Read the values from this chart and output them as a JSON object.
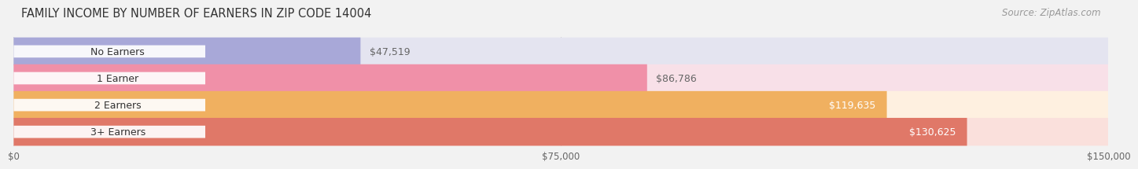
{
  "title": "FAMILY INCOME BY NUMBER OF EARNERS IN ZIP CODE 14004",
  "source": "Source: ZipAtlas.com",
  "categories": [
    "No Earners",
    "1 Earner",
    "2 Earners",
    "3+ Earners"
  ],
  "values": [
    47519,
    86786,
    119635,
    130625
  ],
  "bar_colors": [
    "#a8a8d8",
    "#f090a8",
    "#f0b060",
    "#e07868"
  ],
  "bg_colors": [
    "#e4e4f0",
    "#f8e0e8",
    "#fef0e0",
    "#fae0dc"
  ],
  "value_labels": [
    "$47,519",
    "$86,786",
    "$119,635",
    "$130,625"
  ],
  "value_in_bar": [
    false,
    false,
    true,
    true
  ],
  "value_label_colors_inside": [
    "#ffffff",
    "#ffffff",
    "#ffffff",
    "#ffffff"
  ],
  "value_label_colors_outside": [
    "#666666",
    "#666666",
    "#666666",
    "#666666"
  ],
  "xmax": 150000,
  "xtick_values": [
    0,
    75000,
    150000
  ],
  "xtick_labels": [
    "$0",
    "$75,000",
    "$150,000"
  ],
  "title_fontsize": 10.5,
  "source_fontsize": 8.5,
  "label_fontsize": 9,
  "value_fontsize": 9,
  "background_color": "#f2f2f2",
  "outer_bg": "#ebebeb"
}
